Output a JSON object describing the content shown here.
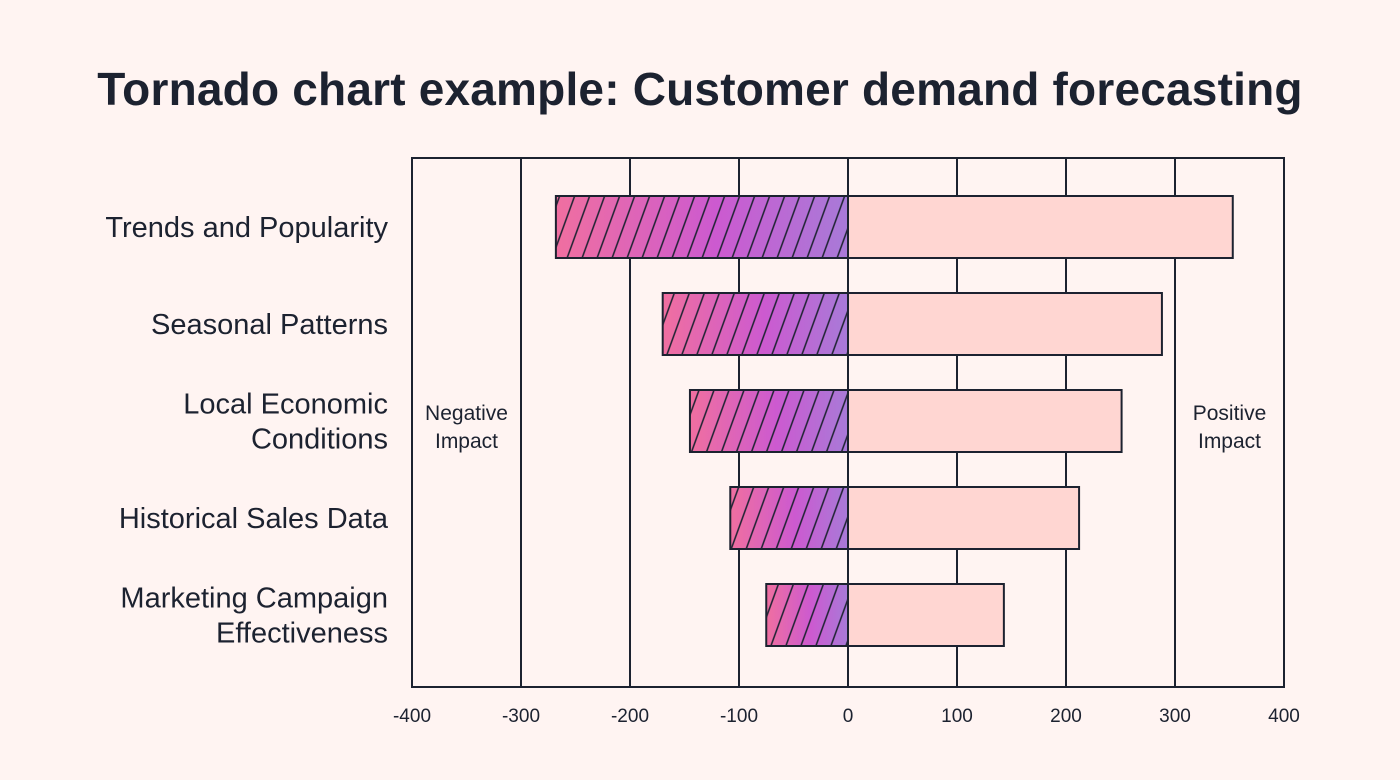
{
  "chart_data": {
    "type": "bar",
    "orientation": "horizontal",
    "title": "Tornado chart example: Customer demand forecasting",
    "categories": [
      [
        "Trends and Popularity"
      ],
      [
        "Seasonal Patterns"
      ],
      [
        "Local Economic",
        "Conditions"
      ],
      [
        "Historical Sales Data"
      ],
      [
        "Marketing Campaign",
        "Effectiveness"
      ]
    ],
    "series": [
      {
        "name": "Negative Impact",
        "values": [
          -268,
          -170,
          -145,
          -108,
          -75
        ],
        "color": "gradient #f06fa0 to #a878d8 with hatching"
      },
      {
        "name": "Positive Impact",
        "values": [
          353,
          288,
          251,
          212,
          143
        ],
        "color": "#ffd6d2"
      }
    ],
    "xlim": [
      -400,
      400
    ],
    "xticks": [
      "-400",
      "-300",
      "-200",
      "-100",
      "0",
      "100",
      "200",
      "300",
      "400"
    ],
    "grid": true,
    "side_labels": {
      "negative": [
        "Negative",
        "Impact"
      ],
      "positive": [
        "Positive",
        "Impact"
      ]
    }
  }
}
